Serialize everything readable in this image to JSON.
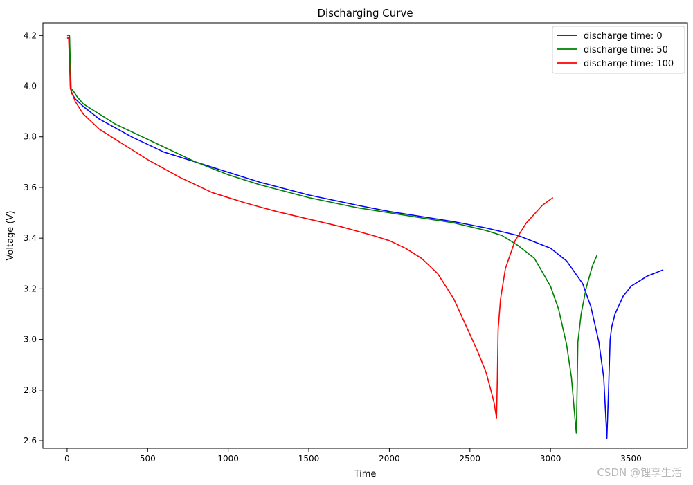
{
  "chart_data": {
    "type": "line",
    "title": "Discharging Curve",
    "xlabel": "Time",
    "ylabel": "Voltage (V)",
    "xlim": [
      -150,
      3850
    ],
    "ylim": [
      2.57,
      4.25
    ],
    "xticks": [
      0,
      500,
      1000,
      1500,
      2000,
      2500,
      3000,
      3500
    ],
    "yticks": [
      2.6,
      2.8,
      3.0,
      3.2,
      3.4,
      3.6,
      3.8,
      4.0,
      4.2
    ],
    "ytick_format": 1,
    "grid": false,
    "legend_position": "top-right",
    "series": [
      {
        "name": "discharge time: 0",
        "color": "#0000ff",
        "x": [
          0,
          15,
          20,
          30,
          50,
          100,
          200,
          400,
          600,
          800,
          1000,
          1200,
          1500,
          1800,
          2000,
          2200,
          2400,
          2600,
          2800,
          3000,
          3100,
          3200,
          3250,
          3300,
          3330,
          3350,
          3360,
          3370,
          3380,
          3400,
          3450,
          3500,
          3600,
          3700
        ],
        "y": [
          4.19,
          4.19,
          4.0,
          3.97,
          3.95,
          3.92,
          3.87,
          3.8,
          3.74,
          3.7,
          3.66,
          3.62,
          3.57,
          3.53,
          3.505,
          3.485,
          3.465,
          3.44,
          3.41,
          3.36,
          3.31,
          3.22,
          3.13,
          2.99,
          2.85,
          2.61,
          2.8,
          3.0,
          3.05,
          3.1,
          3.17,
          3.21,
          3.25,
          3.275
        ]
      },
      {
        "name": "discharge time: 50",
        "color": "#008000",
        "x": [
          0,
          15,
          25,
          40,
          60,
          100,
          200,
          300,
          400,
          500,
          600,
          800,
          1000,
          1200,
          1500,
          1800,
          2000,
          2200,
          2400,
          2600,
          2700,
          2800,
          2900,
          3000,
          3050,
          3100,
          3130,
          3150,
          3160,
          3165,
          3170,
          3190,
          3220,
          3260,
          3290
        ],
        "y": [
          4.2,
          4.2,
          3.99,
          3.98,
          3.96,
          3.93,
          3.89,
          3.85,
          3.82,
          3.79,
          3.76,
          3.7,
          3.65,
          3.61,
          3.56,
          3.52,
          3.5,
          3.48,
          3.46,
          3.43,
          3.41,
          3.37,
          3.32,
          3.21,
          3.12,
          2.98,
          2.85,
          2.7,
          2.63,
          2.8,
          2.99,
          3.1,
          3.2,
          3.29,
          3.335
        ]
      },
      {
        "name": "discharge time: 100",
        "color": "#ff0000",
        "x": [
          0,
          10,
          20,
          50,
          100,
          200,
          300,
          400,
          500,
          700,
          900,
          1100,
          1300,
          1500,
          1700,
          1900,
          2000,
          2100,
          2200,
          2300,
          2400,
          2500,
          2550,
          2600,
          2630,
          2650,
          2665,
          2670,
          2675,
          2690,
          2720,
          2780,
          2850,
          2950,
          3015
        ],
        "y": [
          4.19,
          4.19,
          3.99,
          3.94,
          3.89,
          3.83,
          3.79,
          3.75,
          3.71,
          3.64,
          3.58,
          3.54,
          3.505,
          3.475,
          3.445,
          3.41,
          3.39,
          3.36,
          3.32,
          3.26,
          3.16,
          3.02,
          2.95,
          2.87,
          2.8,
          2.75,
          2.69,
          2.85,
          3.04,
          3.16,
          3.28,
          3.39,
          3.46,
          3.53,
          3.56
        ]
      }
    ]
  },
  "watermark": "CSDN @锂享生活"
}
